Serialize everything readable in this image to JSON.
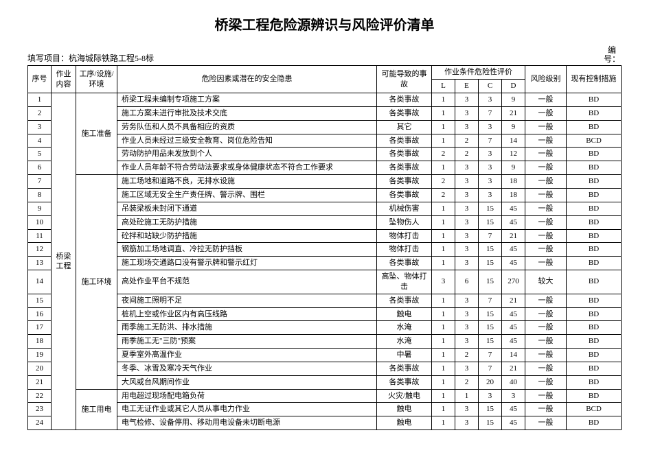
{
  "title": "桥梁工程危险源辨识与风险评价清单",
  "project_label": "填写项目：",
  "project_value": "杭海城际铁路工程5-8标",
  "bianhao_label": "编号：",
  "headers": {
    "seq": "序号",
    "work": "作业内容",
    "proc": "工序/设施/环境",
    "hazard": "危险因素或潜在的安全隐患",
    "accident": "可能导致的事故",
    "criteria": "作业条件危险性评价",
    "L": "L",
    "E": "E",
    "C": "C",
    "D": "D",
    "risk": "风险级别",
    "control": "现有控制措施"
  },
  "work_content": "桥梁工程",
  "groups": [
    {
      "proc": "施工准备",
      "rows": [
        {
          "n": "1",
          "h": "桥梁工程未编制专项施工方案",
          "a": "各类事故",
          "L": "1",
          "E": "3",
          "C": "3",
          "D": "9",
          "r": "一般",
          "c": "BD"
        },
        {
          "n": "2",
          "h": "施工方案未进行审批及技术交底",
          "a": "各类事故",
          "L": "1",
          "E": "3",
          "C": "7",
          "D": "21",
          "r": "一般",
          "c": "BD"
        },
        {
          "n": "3",
          "h": "劳务队伍和人员不具备相应的资质",
          "a": "其它",
          "L": "1",
          "E": "3",
          "C": "3",
          "D": "9",
          "r": "一般",
          "c": "BD"
        },
        {
          "n": "4",
          "h": "作业人员未经过三级安全教育、岗位危险告知",
          "a": "各类事故",
          "L": "1",
          "E": "2",
          "C": "7",
          "D": "14",
          "r": "一般",
          "c": "BCD"
        },
        {
          "n": "5",
          "h": "劳动防护用品未发放到个人",
          "a": "各类事故",
          "L": "2",
          "E": "2",
          "C": "3",
          "D": "12",
          "r": "一般",
          "c": "BD"
        },
        {
          "n": "6",
          "h": "作业人员年龄不符合劳动法要求或身体健康状态不符合工作要求",
          "a": "各类事故",
          "L": "1",
          "E": "3",
          "C": "3",
          "D": "9",
          "r": "一般",
          "c": "BD"
        }
      ]
    },
    {
      "proc": "施工环境",
      "rows": [
        {
          "n": "7",
          "h": "施工场地和道路不良，无排水设施",
          "a": "各类事故",
          "L": "2",
          "E": "3",
          "C": "3",
          "D": "18",
          "r": "一般",
          "c": "BD"
        },
        {
          "n": "8",
          "h": "施工区域无安全生产责任牌、警示牌、围栏",
          "a": "各类事故",
          "L": "2",
          "E": "3",
          "C": "3",
          "D": "18",
          "r": "一般",
          "c": "BD"
        },
        {
          "n": "9",
          "h": "吊装梁板未封闭下通道",
          "a": "机械伤害",
          "L": "1",
          "E": "3",
          "C": "15",
          "D": "45",
          "r": "一般",
          "c": "BD"
        },
        {
          "n": "10",
          "h": "高处砼施工无防护措施",
          "a": "坠物伤人",
          "L": "1",
          "E": "3",
          "C": "15",
          "D": "45",
          "r": "一般",
          "c": "BD"
        },
        {
          "n": "11",
          "h": "砼拌和站缺少防护措施",
          "a": "物体打击",
          "L": "1",
          "E": "3",
          "C": "7",
          "D": "21",
          "r": "一般",
          "c": "BD"
        },
        {
          "n": "12",
          "h": "钢筋加工场地调直、冷拉无防护挡板",
          "a": "物体打击",
          "L": "1",
          "E": "3",
          "C": "15",
          "D": "45",
          "r": "一般",
          "c": "BD"
        },
        {
          "n": "13",
          "h": "施工现场交通路口没有警示牌和警示红灯",
          "a": "各类事故",
          "L": "1",
          "E": "3",
          "C": "15",
          "D": "45",
          "r": "一般",
          "c": "BD"
        },
        {
          "n": "14",
          "h": "高处作业平台不规范",
          "a": "高坠、物体打击",
          "L": "3",
          "E": "6",
          "C": "15",
          "D": "270",
          "r": "较大",
          "c": "BD"
        },
        {
          "n": "15",
          "h": "夜间施工照明不足",
          "a": "各类事故",
          "L": "1",
          "E": "3",
          "C": "7",
          "D": "21",
          "r": "一般",
          "c": "BD"
        },
        {
          "n": "16",
          "h": "桩机上空或作业区内有高压线路",
          "a": "触电",
          "L": "1",
          "E": "3",
          "C": "15",
          "D": "45",
          "r": "一般",
          "c": "BD"
        },
        {
          "n": "17",
          "h": "雨季施工无防洪、排水措施",
          "a": "水淹",
          "L": "1",
          "E": "3",
          "C": "15",
          "D": "45",
          "r": "一般",
          "c": "BD"
        },
        {
          "n": "18",
          "h": "雨季施工无\"三防\"预案",
          "a": "水淹",
          "L": "1",
          "E": "3",
          "C": "15",
          "D": "45",
          "r": "一般",
          "c": "BD"
        },
        {
          "n": "19",
          "h": "夏季室外高温作业",
          "a": "中暑",
          "L": "1",
          "E": "2",
          "C": "7",
          "D": "14",
          "r": "一般",
          "c": "BD"
        },
        {
          "n": "20",
          "h": "冬季、冰雪及寒冷天气作业",
          "a": "各类事故",
          "L": "1",
          "E": "3",
          "C": "7",
          "D": "21",
          "r": "一般",
          "c": "BD"
        },
        {
          "n": "21",
          "h": "大风或台风期间作业",
          "a": "各类事故",
          "L": "1",
          "E": "2",
          "C": "20",
          "D": "40",
          "r": "一般",
          "c": "BD"
        }
      ]
    },
    {
      "proc": "施工用电",
      "rows": [
        {
          "n": "22",
          "h": "用电超过现场配电箱负荷",
          "a": "火灾/触电",
          "L": "1",
          "E": "1",
          "C": "3",
          "D": "3",
          "r": "一般",
          "c": "BD"
        },
        {
          "n": "23",
          "h": "电工无证作业或其它人员从事电力作业",
          "a": "触电",
          "L": "1",
          "E": "3",
          "C": "15",
          "D": "45",
          "r": "一般",
          "c": "BCD"
        },
        {
          "n": "24",
          "h": "电气检修、设备停用、移动用电设备未切断电源",
          "a": "触电",
          "L": "1",
          "E": "3",
          "C": "15",
          "D": "45",
          "r": "一般",
          "c": "BD"
        }
      ]
    }
  ]
}
